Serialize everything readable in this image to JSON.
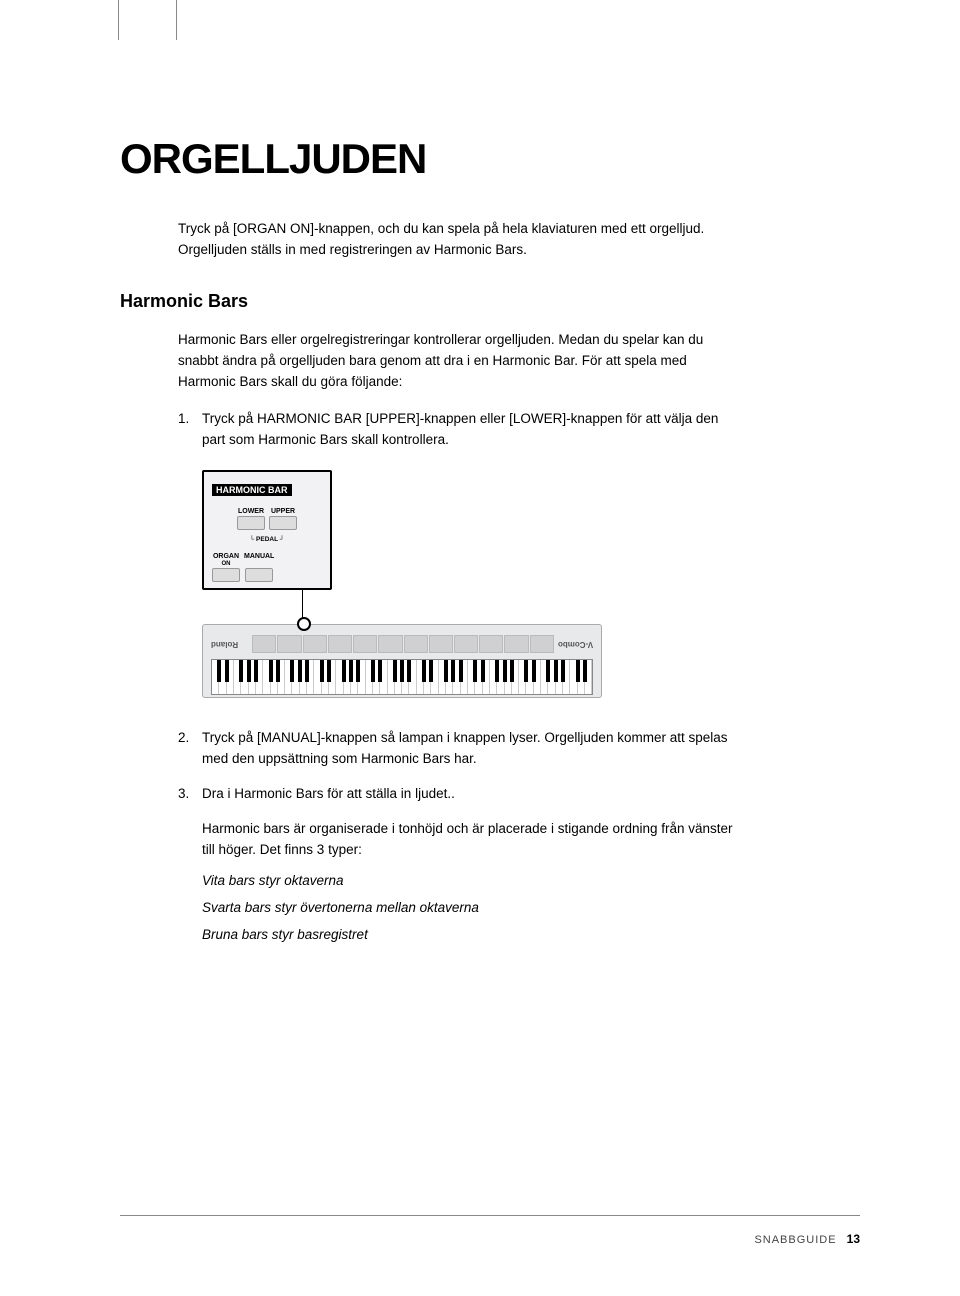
{
  "title": "ORGELLJUDEN",
  "intro": "Tryck på [ORGAN ON]-knappen, och du kan spela på hela klaviaturen med ett orgelljud. Orgelljuden ställs in med registreringen av Harmonic Bars.",
  "section_heading": "Harmonic Bars",
  "section_body": "Harmonic Bars eller orgelregistreringar kontrollerar orgelljuden. Medan du spelar kan du snabbt ändra på orgelljuden bara genom att dra i en Harmonic Bar. För att spela med Harmonic Bars skall du göra följande:",
  "steps": [
    {
      "num": "1.",
      "text": "Tryck på HARMONIC BAR [UPPER]-knappen eller [LOWER]-knappen för att välja den part som Harmonic Bars skall kontrollera."
    },
    {
      "num": "2.",
      "text": "Tryck på [MANUAL]-knappen så lampan i knappen lyser. Orgelljuden kommer att spelas med den uppsättning som Harmonic Bars har."
    },
    {
      "num": "3.",
      "text": "Dra i Harmonic Bars för att ställa in ljudet.."
    }
  ],
  "sub_body": "Harmonic bars är organiserade i tonhöjd och är placerade i stigande ordning från vänster till höger. Det finns 3 typer:",
  "bars_types": [
    "Vita bars styr oktaverna",
    "Svarta bars styr övertonerna mellan oktaverna",
    "Bruna bars styr basregistret"
  ],
  "diagram": {
    "panel_title": "HARMONIC BAR",
    "labels": {
      "lower": "LOWER",
      "upper": "UPPER",
      "pedal": "PEDAL",
      "organ": "ORGAN",
      "on": "ON",
      "manual": "MANUAL"
    },
    "keyboard_brand_left": "Roland",
    "keyboard_brand_right": "V-Combo",
    "white_key_count": 52,
    "colors": {
      "page_bg": "#ffffff",
      "text": "#000000",
      "panel_bg": "#f2f2f4",
      "panel_border": "#000000",
      "keyboard_bg": "#e8e9eb",
      "btn_bg": "#dddddd"
    }
  },
  "footer": {
    "label": "SNABBGUIDE",
    "page": "13"
  }
}
